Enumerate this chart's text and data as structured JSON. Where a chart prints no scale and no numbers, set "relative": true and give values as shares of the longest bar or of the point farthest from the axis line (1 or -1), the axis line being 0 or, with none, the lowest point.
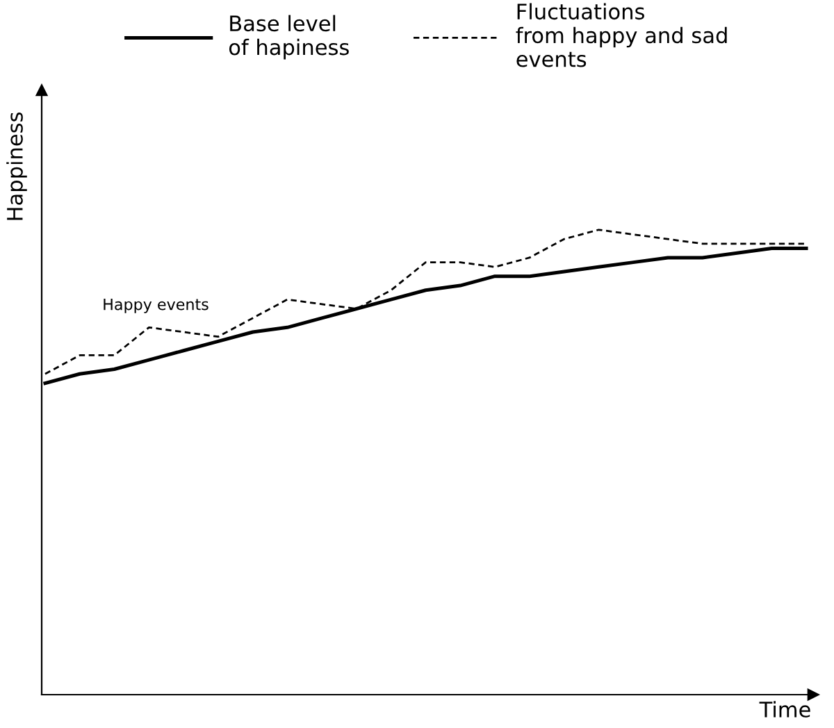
{
  "chart_data": {
    "type": "line",
    "relative": true,
    "xlabel": "Time",
    "ylabel": "Happiness",
    "legend": "top",
    "grid": false,
    "marker": "none",
    "categories": [
      null,
      null,
      null,
      null,
      null,
      null,
      null,
      null,
      null,
      null,
      null,
      null,
      null,
      null,
      null,
      null,
      null,
      null,
      null,
      null,
      null,
      null,
      null
    ],
    "series": [
      {
        "name": "Base level\nof hapiness",
        "color": "#000000",
        "line_style": "solid",
        "values": [
          0.67,
          0.69,
          0.7,
          0.72,
          0.74,
          0.76,
          0.78,
          0.79,
          0.81,
          0.83,
          0.85,
          0.87,
          0.88,
          0.9,
          0.9,
          0.91,
          0.92,
          0.93,
          0.94,
          0.94,
          0.95,
          0.96,
          0.96
        ]
      },
      {
        "name": "Fluctuations\nfrom happy and sad\nevents",
        "color": "#000000",
        "line_style": "dashed",
        "values": [
          0.69,
          0.73,
          0.73,
          0.79,
          0.78,
          0.77,
          0.81,
          0.85,
          0.84,
          0.83,
          0.87,
          0.93,
          0.93,
          0.92,
          0.94,
          0.98,
          1,
          0.99,
          0.98,
          0.97,
          0.97,
          0.97,
          0.97
        ]
      }
    ],
    "annotations": [
      "Happy events"
    ]
  }
}
